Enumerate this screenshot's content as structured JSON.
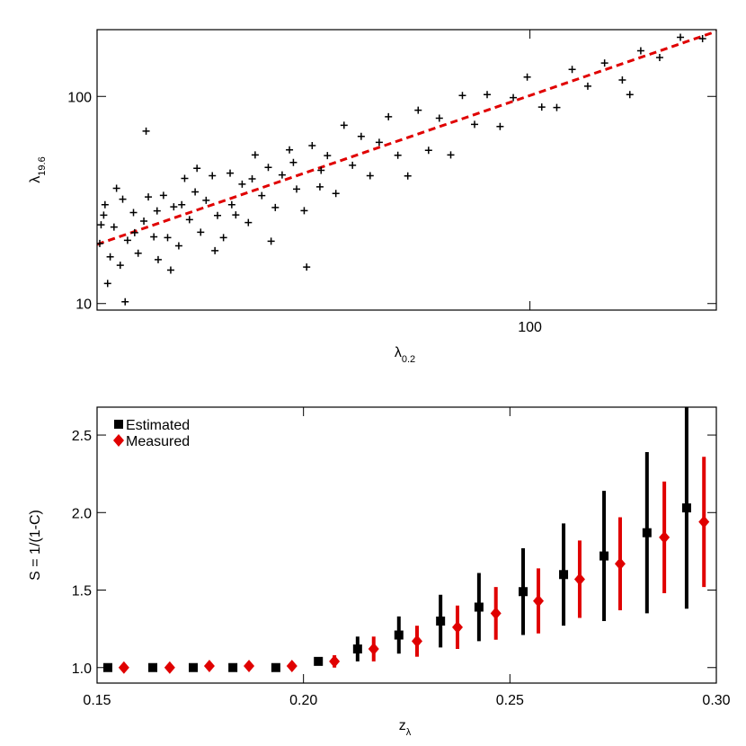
{
  "chart_data": [
    {
      "type": "scatter",
      "xscale": "log",
      "yscale": "log",
      "xlabel": "λ",
      "xlabel_subscript": "0.2",
      "ylabel": "λ",
      "ylabel_subscript": "19.6",
      "xlim": [
        20,
        200
      ],
      "ylim": [
        9.3,
        210
      ],
      "xticks": [
        100
      ],
      "yticks": [
        10,
        100
      ],
      "series": [
        {
          "color": "#000000",
          "marker": "plus",
          "x": [
            20.5,
            21,
            21.3,
            21.8,
            22,
            22.4,
            22.9,
            23.3,
            23.8,
            24.2,
            24.7,
            25.1,
            25.6,
            26,
            26.6,
            27.1,
            27.7,
            28.2,
            28.8,
            29.4,
            30,
            30.7,
            31.3,
            32,
            32.8,
            33.5,
            34.3,
            35.1,
            36,
            36.9,
            37.8,
            38.8,
            39.8,
            40.9,
            42,
            43.2,
            44.5,
            45.8,
            47.1,
            48.6,
            50.1,
            51.7,
            53.4,
            55.2,
            57.1,
            59.1,
            61.2,
            63.5,
            66,
            68.6,
            71.4,
            74.5,
            77.8,
            81.4,
            85.3,
            89.5,
            94,
            99,
            104.5,
            110.5,
            117,
            124,
            132,
            141,
            151,
            162,
            175,
            190,
            20.2,
            20.8,
            21.5,
            22.2,
            23,
            24,
            25,
            26.3,
            27.4,
            29,
            31,
            33,
            35.6,
            38.2,
            41.5,
            43.6,
            46,
            145,
            20.3,
            20.6
          ],
          "y": [
            26.7,
            16.8,
            23.4,
            15.3,
            31.9,
            20.2,
            27.5,
            17.5,
            25,
            32.7,
            21,
            16.3,
            33.3,
            20.8,
            29.3,
            19,
            40.2,
            25.4,
            34.6,
            22.1,
            31.5,
            41.4,
            26.6,
            20.8,
            42.6,
            26.8,
            37.7,
            24.6,
            52.2,
            33.2,
            45.4,
            29.1,
            41.8,
            55.2,
            35.7,
            28.1,
            57.9,
            36.6,
            51.8,
            34,
            72.6,
            46.5,
            64.1,
            41.4,
            60,
            79.8,
            52,
            41.3,
            85.8,
            54.9,
            78.5,
            52.2,
            101,
            73.3,
            102,
            71.6,
            98.7,
            124,
            88.8,
            88.4,
            135,
            112,
            145,
            120,
            166,
            154,
            193,
            190,
            19.5,
            12.5,
            36,
            10.2,
            22,
            68,
            28,
            14.5,
            30,
            45,
            18,
            30,
            40,
            20,
            48,
            15,
            44,
            102,
            24,
            30
          ]
        }
      ],
      "fit_line": {
        "color": "#e00000",
        "style": "dashed",
        "x": [
          20,
          200
        ],
        "y": [
          19.3,
          206
        ]
      }
    },
    {
      "type": "scatter",
      "legend": "upper left",
      "xlabel": "z",
      "xlabel_subscript": "λ",
      "ylabel": "S = 1/(1-C)",
      "xlim": [
        0.15,
        0.3
      ],
      "ylim": [
        0.9,
        2.68
      ],
      "xticks": [
        {
          "value": 0.15,
          "label": "0.15"
        },
        {
          "value": 0.2,
          "label": "0.20"
        },
        {
          "value": 0.25,
          "label": "0.25"
        },
        {
          "value": 0.3,
          "label": "0.30"
        }
      ],
      "yticks": [
        {
          "value": 1,
          "label": "1.0"
        },
        {
          "value": 1.5,
          "label": "1.5"
        },
        {
          "value": 2,
          "label": "2.0"
        },
        {
          "value": 2.5,
          "label": "2.5"
        }
      ],
      "series": [
        {
          "name": "Estimated",
          "color": "#000000",
          "marker": "square",
          "x": [
            0.1526,
            0.1635,
            0.1733,
            0.1829,
            0.1933,
            0.2036,
            0.2131,
            0.2231,
            0.2332,
            0.2425,
            0.2532,
            0.263,
            0.2728,
            0.2832,
            0.2928
          ],
          "values": [
            1,
            1,
            1,
            1,
            1,
            1.04,
            1.12,
            1.21,
            1.3,
            1.39,
            1.49,
            1.6,
            1.72,
            1.87,
            2.03
          ],
          "errors": [
            0,
            0,
            0,
            0,
            0,
            0.02,
            0.08,
            0.12,
            0.17,
            0.22,
            0.28,
            0.33,
            0.42,
            0.52,
            0.65
          ]
        },
        {
          "name": "Measured",
          "color": "#e00000",
          "marker": "diamond",
          "x": [
            0.1565,
            0.1676,
            0.1772,
            0.1868,
            0.1972,
            0.2075,
            0.217,
            0.2275,
            0.2373,
            0.2466,
            0.2569,
            0.2669,
            0.2767,
            0.2874,
            0.297
          ],
          "values": [
            1,
            1,
            1.01,
            1.01,
            1.01,
            1.04,
            1.12,
            1.17,
            1.26,
            1.35,
            1.43,
            1.57,
            1.67,
            1.84,
            1.94
          ],
          "errors": [
            0,
            0,
            0,
            0,
            0,
            0.04,
            0.08,
            0.1,
            0.14,
            0.17,
            0.21,
            0.25,
            0.3,
            0.36,
            0.42
          ]
        }
      ]
    }
  ]
}
